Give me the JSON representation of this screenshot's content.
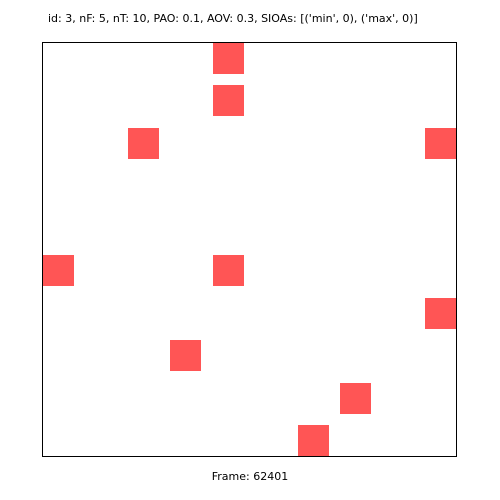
{
  "header": {
    "text": "id: 3, nF: 5, nT: 10, PAO: 0.1, AOV: 0.3, SIOAs: [('min', 0), ('max', 0)]"
  },
  "footer": {
    "label": "Frame:",
    "number": "62401"
  },
  "canvas": {
    "square_color": "#ff5555",
    "background": "#ffffff",
    "border_color": "#000000"
  },
  "objects": [
    {
      "id": 1,
      "label": "",
      "row": 0,
      "col": 4
    },
    {
      "id": 2,
      "label": "",
      "row": 1,
      "col": 4
    },
    {
      "id": 3,
      "label": "",
      "row": 2,
      "col": 2
    },
    {
      "id": 4,
      "label": "",
      "row": 2,
      "col": 9
    },
    {
      "id": 5,
      "label": "",
      "row": 5,
      "col": 0
    },
    {
      "id": 6,
      "label": "",
      "row": 5,
      "col": 4
    },
    {
      "id": 7,
      "label": "",
      "row": 6,
      "col": 9
    },
    {
      "id": 8,
      "label": "",
      "row": 7,
      "col": 3
    },
    {
      "id": 9,
      "label": "",
      "row": 8,
      "col": 7
    },
    {
      "id": 10,
      "label": "",
      "row": 9,
      "col": 6
    }
  ]
}
